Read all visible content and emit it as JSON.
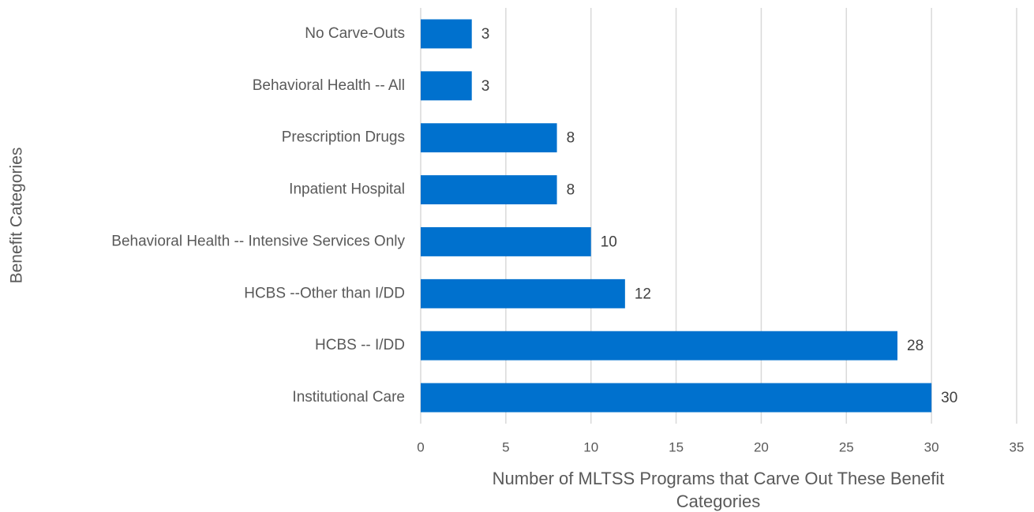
{
  "chart_data": {
    "type": "bar",
    "orientation": "horizontal",
    "xlabel": "Number of MLTSS Programs that Carve Out These Benefit Categories",
    "ylabel": "Benefit Categories",
    "categories": [
      "No Carve-Outs",
      "Behavioral Health -- All",
      "Prescription Drugs",
      "Inpatient Hospital",
      "Behavioral Health -- Intensive Services Only",
      "HCBS --Other than I/DD",
      "HCBS -- I/DD",
      "Institutional Care"
    ],
    "values": [
      3,
      3,
      8,
      8,
      10,
      12,
      28,
      30
    ],
    "color": "#0071ce",
    "xlim": [
      0,
      35
    ],
    "xticks": [
      0,
      5,
      10,
      15,
      20,
      25,
      30,
      35
    ],
    "grid": true
  }
}
